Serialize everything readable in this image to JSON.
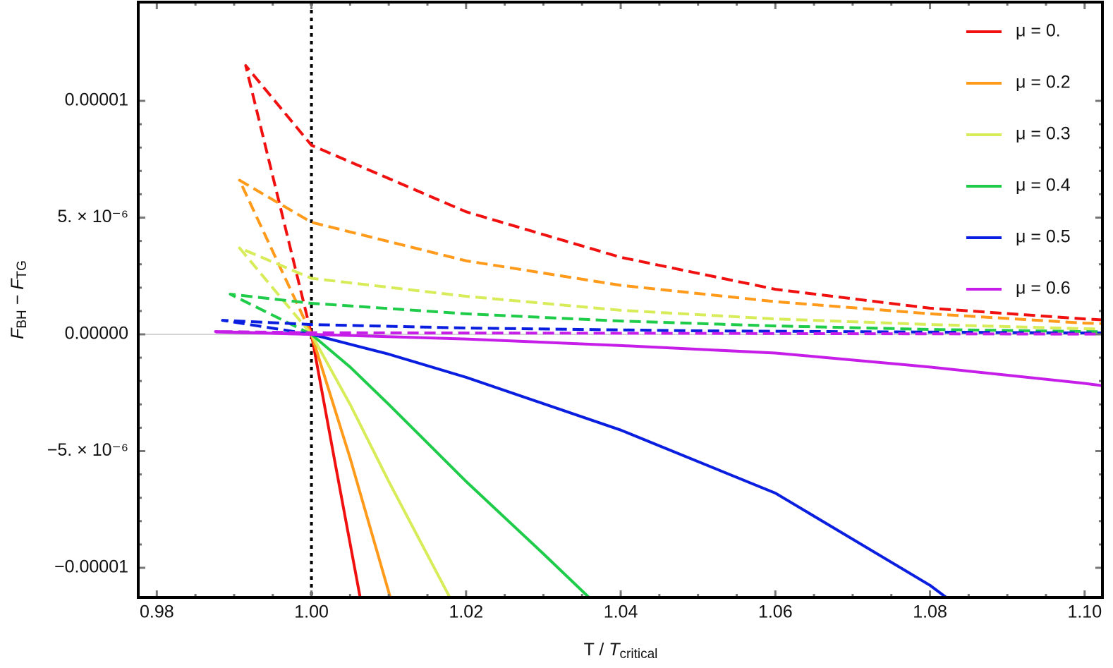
{
  "chart_data": {
    "type": "line",
    "xlabel": [
      "T / ",
      "T",
      "critical"
    ],
    "ylabel": [
      "F",
      "BH",
      " − ",
      "F",
      "TG"
    ],
    "xlim": [
      0.9776,
      1.1023
    ],
    "ylim": [
      -1.127e-05,
      1.423e-05
    ],
    "xticks": [
      0.98,
      {
        "value": 1.0,
        "label": "1.00"
      },
      1.02,
      1.04,
      1.06,
      1.08,
      {
        "value": 1.1,
        "label": "1.10"
      }
    ],
    "yticks": [
      {
        "value": -1e-05,
        "label": "−0.00001"
      },
      {
        "value": -5e-06,
        "label": "−5. × 10⁻⁶"
      },
      {
        "value": 0,
        "label": "0.00000"
      },
      {
        "value": 5e-06,
        "label": "5. × 10⁻⁶"
      },
      {
        "value": 1e-05,
        "label": "0.00001"
      }
    ],
    "vline": 1.0,
    "legend": "upper right",
    "series": [
      {
        "name": "μ = 0.",
        "color": "#f01010",
        "x": [
          1.0,
          1.003,
          1.0063
        ],
        "values": [
          0,
          -5.4e-06,
          -1.127e-05
        ]
      },
      {
        "name": "μ = 0.2",
        "color": "#ff9a1a",
        "x": [
          1.0,
          1.005,
          1.0102
        ],
        "values": [
          0,
          -5.3e-06,
          -1.127e-05
        ]
      },
      {
        "name": "μ = 0.3",
        "color": "#d8ec5a",
        "x": [
          1.0,
          1.005,
          1.01,
          1.0179
        ],
        "values": [
          0,
          -3e-06,
          -6.3e-06,
          -1.127e-05
        ]
      },
      {
        "name": "μ = 0.4",
        "color": "#1fcc4a",
        "x": [
          1.0,
          1.005,
          1.01,
          1.02,
          1.03,
          1.0359
        ],
        "values": [
          0,
          -1.4e-06,
          -3e-06,
          -6.3e-06,
          -9.4e-06,
          -1.127e-05
        ]
      },
      {
        "name": "μ = 0.5",
        "color": "#0a1ee0",
        "x": [
          1.0,
          1.01,
          1.02,
          1.04,
          1.06,
          1.08,
          1.0821
        ],
        "values": [
          0,
          -8.5e-07,
          -1.84e-06,
          -4.1e-06,
          -6.8e-06,
          -1.075e-05,
          -1.127e-05
        ]
      },
      {
        "name": "μ = 0.6",
        "color": "#c61ee8",
        "x": [
          0.9876,
          1.0,
          1.02,
          1.04,
          1.06,
          1.08,
          1.1,
          1.1023
        ],
        "values": [
          1e-07,
          0,
          -2e-07,
          -4.8e-07,
          -8e-07,
          -1.4e-06,
          -2.1e-06,
          -2.2e-06
        ]
      },
      {
        "color": "#f01010",
        "style": "dashed",
        "x": [
          1.0,
          0.9915,
          1.0,
          1.02,
          1.04,
          1.06,
          1.08,
          1.1,
          1.1023
        ],
        "values": [
          0,
          1.151e-05,
          8.1e-06,
          5.25e-06,
          3.3e-06,
          1.93e-06,
          1.12e-06,
          6.6e-07,
          6.2e-07
        ]
      },
      {
        "color": "#ff9a1a",
        "style": "dashed",
        "x": [
          1.0,
          0.9907,
          1.0,
          1.02,
          1.04,
          1.06,
          1.08,
          1.1,
          1.1023
        ],
        "values": [
          0,
          6.6e-06,
          4.8e-06,
          3.15e-06,
          2.1e-06,
          1.4e-06,
          8.8e-07,
          4.8e-07,
          4.6e-07
        ]
      },
      {
        "color": "#d8ec5a",
        "style": "dashed",
        "x": [
          1.0,
          0.9907,
          1.0,
          1.02,
          1.04,
          1.06,
          1.08,
          1.1,
          1.1023
        ],
        "values": [
          0,
          3.7e-06,
          2.4e-06,
          1.63e-06,
          1.03e-06,
          6.6e-07,
          4.2e-07,
          2.4e-07,
          2.3e-07
        ]
      },
      {
        "color": "#1fcc4a",
        "style": "dashed",
        "x": [
          1.0,
          0.9895,
          1.0,
          1.02,
          1.04,
          1.06,
          1.08,
          1.1,
          1.1023
        ],
        "values": [
          0,
          1.72e-06,
          1.33e-06,
          8.8e-07,
          5.7e-07,
          3.6e-07,
          2.1e-07,
          1.2e-07,
          1.1e-07
        ]
      },
      {
        "color": "#0a1ee0",
        "style": "dashed",
        "x": [
          1.0,
          0.9885,
          1.0,
          1.02,
          1.05,
          1.1,
          1.1023
        ],
        "values": [
          0,
          6e-07,
          4.2e-07,
          2.7e-07,
          1.5e-07,
          6e-08,
          6e-08
        ]
      },
      {
        "color": "#c61ee8",
        "style": "dashed",
        "x": [
          1.0,
          0.9876,
          1.0,
          1.1,
          1.1023
        ],
        "values": [
          0,
          1.2e-07,
          7e-08,
          1e-08,
          1e-08
        ]
      }
    ]
  }
}
